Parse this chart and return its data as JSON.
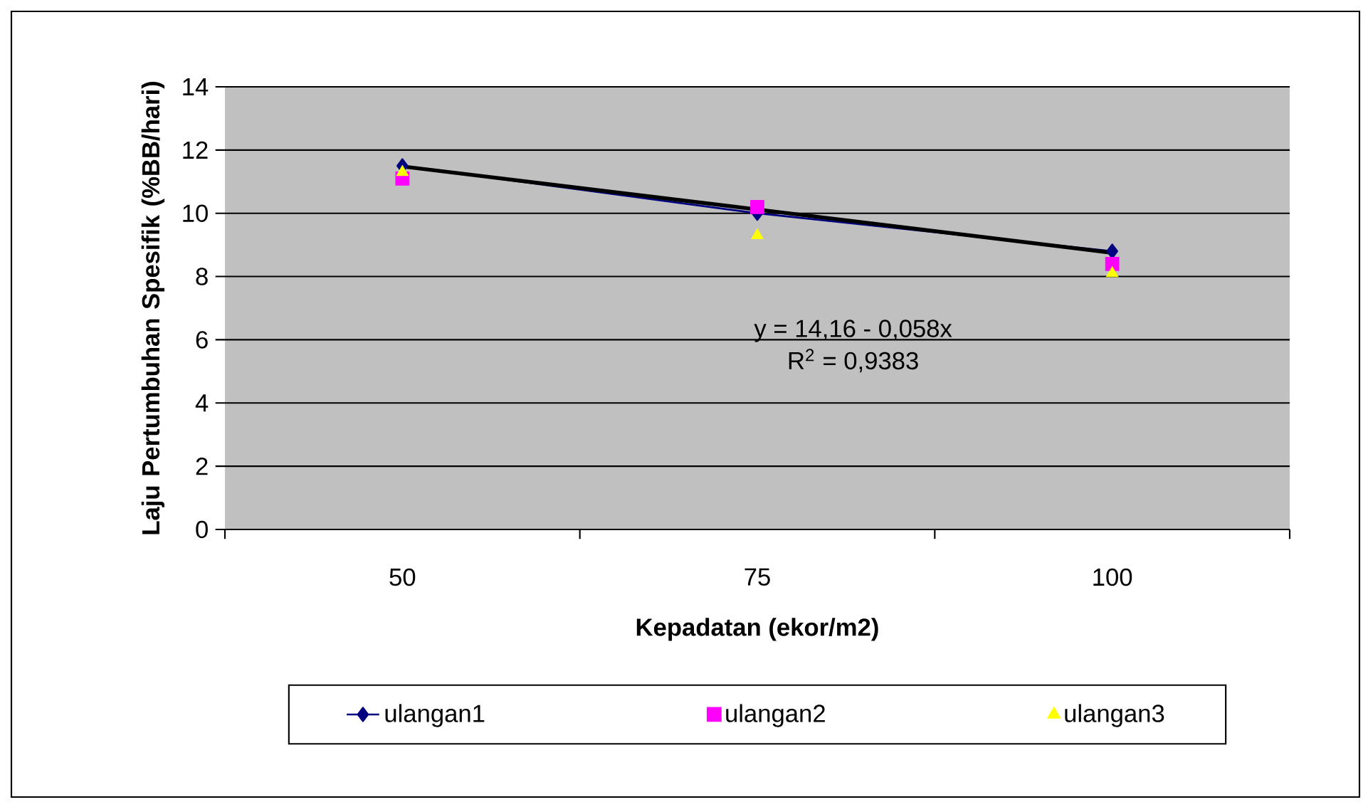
{
  "chart_data": {
    "type": "line",
    "xlabel": "Kepadatan (ekor/m2)",
    "ylabel": "Laju Pertumbuhan Spesifik (%BB/hari)",
    "categories": [
      "50",
      "75",
      "100"
    ],
    "series": [
      {
        "name": "ulangan1",
        "color": "#000080",
        "marker": "diamond",
        "line_style": "solid",
        "values": [
          11.5,
          10.0,
          8.8
        ]
      },
      {
        "name": "ulangan2",
        "type": "scatter",
        "color": "#ff00ff",
        "marker": "square",
        "values": [
          11.1,
          10.2,
          8.4
        ]
      },
      {
        "name": "ulangan3",
        "type": "scatter",
        "color": "#ffff00",
        "marker": "triangle",
        "values": [
          11.3,
          9.3,
          8.1
        ]
      },
      {
        "color": "#000000",
        "marker": "none",
        "line_style": "solid",
        "values": [
          11.48,
          10.12,
          8.75
        ]
      }
    ],
    "ylim": [
      0,
      14
    ],
    "yticks": [
      0,
      2,
      4,
      6,
      8,
      10,
      12,
      14
    ],
    "grid": "y",
    "legend": "bottom",
    "annotations": [
      "y = 14,16 - 0,058x",
      "R$^{2}$ = 0,9383"
    ]
  }
}
